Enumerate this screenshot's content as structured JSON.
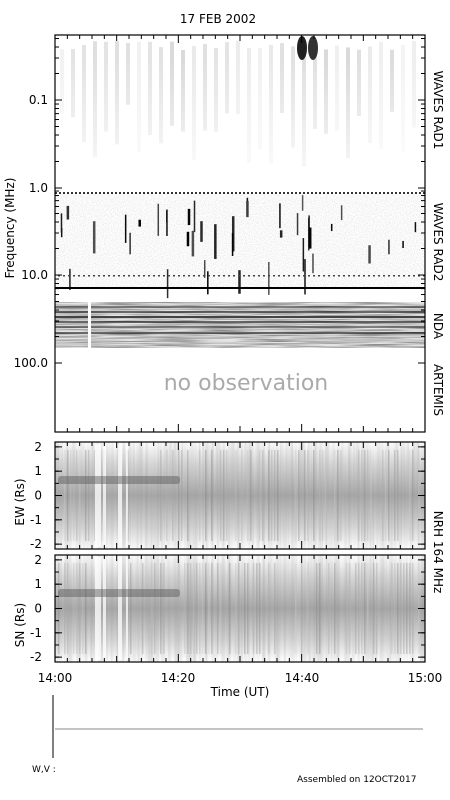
{
  "chart_data": {
    "type": "heatmap",
    "title": "17 FEB 2002",
    "xlabel": "Time (UT)",
    "x_ticks": [
      "14:00",
      "14:20",
      "14:40",
      "15:00"
    ],
    "x_range": [
      "14:00",
      "15:00"
    ],
    "panels": [
      {
        "id": "radio-spectrum",
        "ylabel": "Frequency (MHz)",
        "y_scale": "log",
        "y_ticks": [
          "0.1",
          "1.0",
          "10.0",
          "100.0"
        ],
        "right_labels": [
          "WAVES RAD1",
          "WAVES RAD2",
          "NDA",
          "ARTEMIS"
        ],
        "annotation": "no observation"
      },
      {
        "id": "nrh-ew",
        "ylabel": "EW (Rs)",
        "y_ticks": [
          "2",
          "1",
          "0",
          "-1",
          "-2"
        ],
        "ylim": [
          -2.2,
          2.2
        ]
      },
      {
        "id": "nrh-sn",
        "ylabel": "SN (Rs)",
        "y_ticks": [
          "2",
          "1",
          "0",
          "-1",
          "-2"
        ],
        "ylim": [
          -2.2,
          2.2
        ]
      }
    ],
    "nrh_label": "NRH 164 MHz"
  },
  "footer": {
    "wv_label": "W,V :",
    "assembled": "Assembled on 12OCT2017"
  }
}
